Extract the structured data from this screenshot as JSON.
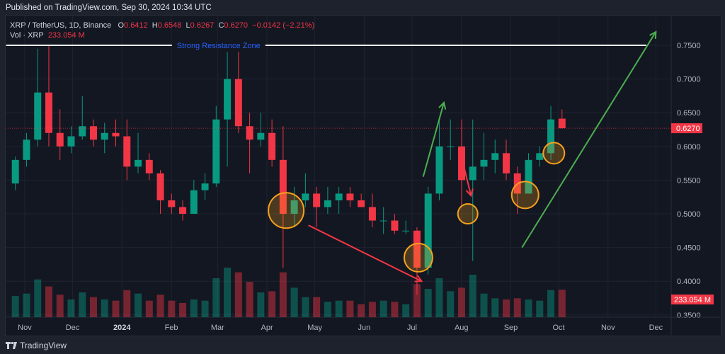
{
  "header": {
    "published": "Published on TradingView.com, Sep 30, 2024 10:34 UTC"
  },
  "legend": {
    "symbol": "XRP / TetherUS, 1D, Binance",
    "o_label": "O",
    "o": "0.6412",
    "h_label": "H",
    "h": "0.6548",
    "l_label": "L",
    "l": "0.6267",
    "c_label": "C",
    "c": "0.6270",
    "change": "−0.0142 (−2.21%)",
    "vol_label": "Vol · XRP",
    "vol": "233.054 M"
  },
  "footer": {
    "brand": "TradingView"
  },
  "colors": {
    "up": "#089981",
    "down": "#f23645",
    "background": "#131722",
    "resistance_line": "#ffffff",
    "resistance_text": "#2962ff",
    "circle": "#f7a21b",
    "arrow_up": "#4caf50",
    "arrow_down": "#f23645"
  },
  "chart_data": {
    "type": "candlestick",
    "interval_note": "1D",
    "ylim": [
      0.35,
      0.77
    ],
    "y_ticks": [
      "0.7500",
      "0.7000",
      "0.6500",
      "0.6000",
      "0.5500",
      "0.5000",
      "0.4500",
      "0.4000",
      "0.3500"
    ],
    "x_ticks": [
      "Nov",
      "Dec",
      "2024",
      "Feb",
      "Mar",
      "Apr",
      "May",
      "Jun",
      "Jul",
      "Aug",
      "Sep",
      "Oct",
      "Nov",
      "Dec"
    ],
    "last_price_label": "0.6270",
    "last_volume_label": "233.054 M",
    "candles": [
      [
        "2023-10-23",
        0.545,
        0.585,
        0.535,
        0.58,
        180
      ],
      [
        "2023-10-30",
        0.58,
        0.62,
        0.57,
        0.61,
        200
      ],
      [
        "2023-11-06",
        0.61,
        0.745,
        0.6,
        0.68,
        320
      ],
      [
        "2023-11-13",
        0.68,
        0.75,
        0.6,
        0.62,
        260
      ],
      [
        "2023-11-20",
        0.62,
        0.655,
        0.58,
        0.6,
        190
      ],
      [
        "2023-11-27",
        0.6,
        0.63,
        0.59,
        0.615,
        150
      ],
      [
        "2023-12-04",
        0.615,
        0.675,
        0.61,
        0.63,
        210
      ],
      [
        "2023-12-11",
        0.63,
        0.64,
        0.6,
        0.61,
        170
      ],
      [
        "2023-12-18",
        0.61,
        0.635,
        0.59,
        0.62,
        150
      ],
      [
        "2023-12-25",
        0.62,
        0.64,
        0.6,
        0.615,
        140
      ],
      [
        "2024-01-01",
        0.615,
        0.64,
        0.55,
        0.57,
        230
      ],
      [
        "2024-01-08",
        0.57,
        0.62,
        0.56,
        0.58,
        200
      ],
      [
        "2024-01-15",
        0.58,
        0.59,
        0.55,
        0.56,
        140
      ],
      [
        "2024-01-22",
        0.56,
        0.565,
        0.5,
        0.52,
        190
      ],
      [
        "2024-01-29",
        0.52,
        0.53,
        0.5,
        0.51,
        140
      ],
      [
        "2024-02-05",
        0.51,
        0.52,
        0.49,
        0.5,
        120
      ],
      [
        "2024-02-12",
        0.5,
        0.55,
        0.5,
        0.535,
        150
      ],
      [
        "2024-02-19",
        0.535,
        0.56,
        0.52,
        0.545,
        140
      ],
      [
        "2024-02-26",
        0.545,
        0.66,
        0.54,
        0.64,
        330
      ],
      [
        "2024-03-04",
        0.64,
        0.74,
        0.57,
        0.7,
        420
      ],
      [
        "2024-03-11",
        0.7,
        0.74,
        0.62,
        0.63,
        380
      ],
      [
        "2024-03-18",
        0.63,
        0.65,
        0.56,
        0.61,
        300
      ],
      [
        "2024-03-25",
        0.61,
        0.65,
        0.6,
        0.62,
        210
      ],
      [
        "2024-04-01",
        0.62,
        0.64,
        0.57,
        0.58,
        220
      ],
      [
        "2024-04-08",
        0.58,
        0.63,
        0.42,
        0.5,
        380
      ],
      [
        "2024-04-15",
        0.5,
        0.54,
        0.48,
        0.52,
        250
      ],
      [
        "2024-04-22",
        0.52,
        0.56,
        0.51,
        0.53,
        170
      ],
      [
        "2024-04-29",
        0.53,
        0.54,
        0.48,
        0.51,
        170
      ],
      [
        "2024-05-06",
        0.51,
        0.54,
        0.5,
        0.52,
        130
      ],
      [
        "2024-05-13",
        0.52,
        0.54,
        0.5,
        0.53,
        140
      ],
      [
        "2024-05-20",
        0.53,
        0.54,
        0.51,
        0.52,
        140
      ],
      [
        "2024-05-27",
        0.52,
        0.53,
        0.51,
        0.51,
        110
      ],
      [
        "2024-06-03",
        0.51,
        0.53,
        0.48,
        0.49,
        130
      ],
      [
        "2024-06-10",
        0.49,
        0.51,
        0.47,
        0.49,
        140
      ],
      [
        "2024-06-17",
        0.49,
        0.5,
        0.47,
        0.475,
        130
      ],
      [
        "2024-06-24",
        0.475,
        0.49,
        0.47,
        0.475,
        110
      ],
      [
        "2024-07-01",
        0.475,
        0.48,
        0.38,
        0.42,
        280
      ],
      [
        "2024-07-08",
        0.42,
        0.54,
        0.41,
        0.53,
        240
      ],
      [
        "2024-07-15",
        0.53,
        0.64,
        0.52,
        0.6,
        330
      ],
      [
        "2024-07-22",
        0.6,
        0.64,
        0.58,
        0.6,
        220
      ],
      [
        "2024-07-29",
        0.6,
        0.64,
        0.51,
        0.55,
        250
      ],
      [
        "2024-08-05",
        0.55,
        0.64,
        0.43,
        0.57,
        360
      ],
      [
        "2024-08-12",
        0.57,
        0.62,
        0.55,
        0.58,
        200
      ],
      [
        "2024-08-19",
        0.58,
        0.61,
        0.56,
        0.59,
        160
      ],
      [
        "2024-08-26",
        0.59,
        0.61,
        0.55,
        0.56,
        150
      ],
      [
        "2024-09-02",
        0.56,
        0.57,
        0.5,
        0.53,
        160
      ],
      [
        "2024-09-09",
        0.53,
        0.59,
        0.53,
        0.58,
        150
      ],
      [
        "2024-09-16",
        0.58,
        0.6,
        0.57,
        0.59,
        140
      ],
      [
        "2024-09-23",
        0.59,
        0.66,
        0.58,
        0.64,
        230
      ],
      [
        "2024-09-30",
        0.6412,
        0.6548,
        0.6267,
        0.627,
        233.054
      ]
    ],
    "candle_fields": [
      "date",
      "open",
      "high",
      "low",
      "close",
      "volume_M"
    ],
    "annotations": {
      "resistance": {
        "label": "Strong Resistance Zone",
        "price": 0.75,
        "from": "2023-10-23",
        "to": "2024-11-25"
      },
      "circles": [
        {
          "date": "2024-04-13",
          "price": 0.505
        },
        {
          "date": "2024-07-05",
          "price": 0.435
        },
        {
          "date": "2024-08-05",
          "price": 0.5
        },
        {
          "date": "2024-09-10",
          "price": 0.528
        },
        {
          "date": "2024-09-28",
          "price": 0.59
        }
      ],
      "arrows": [
        {
          "color": "down",
          "from": [
            "2024-04-27",
            0.483
          ],
          "to": [
            "2024-07-07",
            0.4
          ]
        },
        {
          "color": "up",
          "from": [
            "2024-07-08",
            0.555
          ],
          "to": [
            "2024-07-21",
            0.665
          ]
        },
        {
          "color": "down",
          "from": [
            "2024-08-01",
            0.585
          ],
          "to": [
            "2024-08-07",
            0.527
          ]
        },
        {
          "color": "up",
          "from": [
            "2024-09-08",
            0.45
          ],
          "to": [
            "2024-12-01",
            0.77
          ]
        }
      ]
    }
  }
}
